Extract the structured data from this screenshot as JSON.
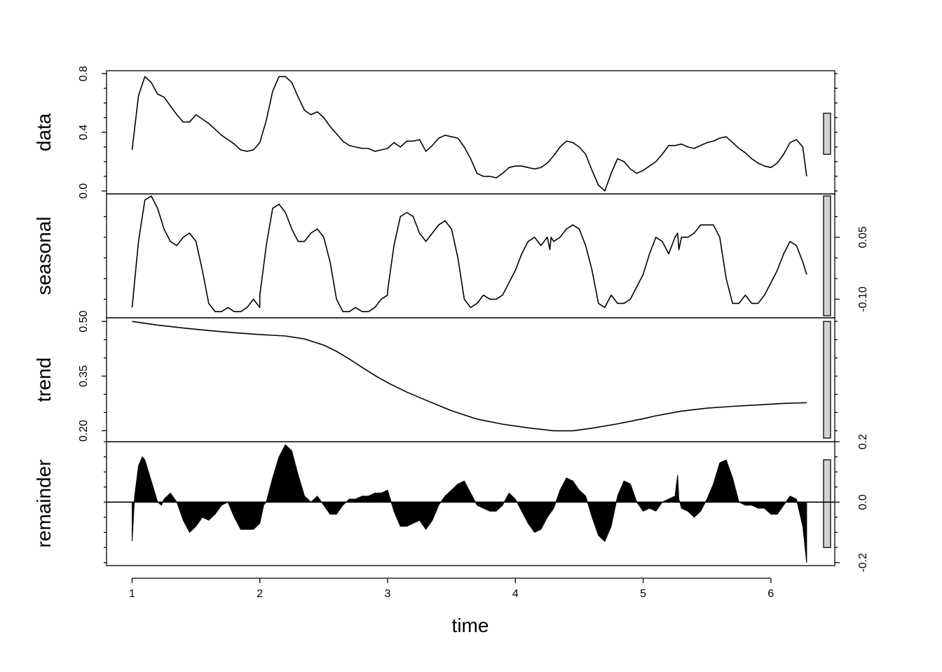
{
  "chart_data": {
    "type": "line",
    "xlabel": "time",
    "xlim": [
      0.8,
      6.5
    ],
    "x_ticks": [
      1,
      2,
      3,
      4,
      5,
      6
    ],
    "x_tick_labels": [
      "1",
      "2",
      "3",
      "4",
      "5",
      "6"
    ],
    "panels": [
      {
        "name": "data",
        "ylabel": "data",
        "style": "line",
        "ylim": [
          -0.02,
          0.82
        ],
        "ticks": [
          0.0,
          0.4,
          0.8
        ],
        "tick_labels": [
          "0.0",
          "0.4",
          "0.8"
        ],
        "tick_side": "left",
        "minor_ticks": [
          0.1,
          0.2,
          0.3,
          0.5,
          0.6,
          0.7
        ],
        "scale_bar": [
          0.25,
          0.53
        ],
        "x": [
          1.0,
          1.05,
          1.1,
          1.15,
          1.2,
          1.25,
          1.3,
          1.35,
          1.4,
          1.45,
          1.5,
          1.6,
          1.7,
          1.75,
          1.8,
          1.85,
          1.9,
          1.95,
          2.0,
          2.05,
          2.1,
          2.15,
          2.2,
          2.25,
          2.3,
          2.35,
          2.4,
          2.45,
          2.5,
          2.55,
          2.6,
          2.65,
          2.7,
          2.75,
          2.8,
          2.85,
          2.9,
          2.95,
          3.0,
          3.05,
          3.1,
          3.15,
          3.2,
          3.25,
          3.3,
          3.35,
          3.4,
          3.45,
          3.5,
          3.55,
          3.6,
          3.65,
          3.7,
          3.75,
          3.8,
          3.85,
          3.9,
          3.95,
          4.0,
          4.05,
          4.1,
          4.15,
          4.2,
          4.25,
          4.3,
          4.35,
          4.4,
          4.45,
          4.5,
          4.55,
          4.6,
          4.65,
          4.7,
          4.75,
          4.8,
          4.85,
          4.9,
          4.95,
          5.0,
          5.05,
          5.1,
          5.15,
          5.2,
          5.25,
          5.3,
          5.35,
          5.4,
          5.45,
          5.5,
          5.55,
          5.6,
          5.65,
          5.7,
          5.75,
          5.8,
          5.85,
          5.9,
          5.95,
          6.0,
          6.05,
          6.1,
          6.15,
          6.2,
          6.25,
          6.28
        ],
        "y": [
          0.28,
          0.65,
          0.78,
          0.74,
          0.66,
          0.64,
          0.58,
          0.52,
          0.47,
          0.47,
          0.52,
          0.46,
          0.38,
          0.35,
          0.32,
          0.28,
          0.27,
          0.28,
          0.33,
          0.48,
          0.68,
          0.78,
          0.78,
          0.74,
          0.64,
          0.55,
          0.52,
          0.54,
          0.5,
          0.44,
          0.39,
          0.34,
          0.31,
          0.3,
          0.29,
          0.29,
          0.27,
          0.28,
          0.29,
          0.33,
          0.3,
          0.34,
          0.34,
          0.35,
          0.27,
          0.31,
          0.36,
          0.38,
          0.37,
          0.36,
          0.3,
          0.22,
          0.12,
          0.1,
          0.1,
          0.09,
          0.12,
          0.16,
          0.17,
          0.17,
          0.16,
          0.15,
          0.16,
          0.19,
          0.24,
          0.3,
          0.34,
          0.33,
          0.3,
          0.25,
          0.14,
          0.04,
          0.0,
          0.12,
          0.22,
          0.2,
          0.15,
          0.12,
          0.14,
          0.17,
          0.2,
          0.25,
          0.31,
          0.31,
          0.32,
          0.3,
          0.29,
          0.31,
          0.33,
          0.34,
          0.36,
          0.37,
          0.33,
          0.29,
          0.26,
          0.22,
          0.19,
          0.17,
          0.16,
          0.19,
          0.25,
          0.33,
          0.35,
          0.3,
          0.1
        ]
      },
      {
        "name": "seasonal",
        "ylabel": "seasonal",
        "style": "line",
        "ylim": [
          -0.145,
          0.155
        ],
        "ticks": [
          -0.1,
          0.05
        ],
        "tick_labels": [
          "-0.10",
          "0.05"
        ],
        "tick_side": "right",
        "minor_ticks": [
          -0.05,
          0.0,
          0.1
        ],
        "scale_bar": [
          -0.14,
          0.15
        ],
        "x": [
          1.0,
          1.05,
          1.1,
          1.15,
          1.2,
          1.25,
          1.3,
          1.35,
          1.4,
          1.45,
          1.5,
          1.55,
          1.6,
          1.65,
          1.7,
          1.75,
          1.8,
          1.85,
          1.9,
          1.95,
          2.0,
          2.0,
          2.05,
          2.1,
          2.15,
          2.2,
          2.25,
          2.3,
          2.35,
          2.4,
          2.45,
          2.5,
          2.55,
          2.6,
          2.65,
          2.7,
          2.75,
          2.8,
          2.85,
          2.9,
          2.95,
          3.0,
          3.0,
          3.05,
          3.1,
          3.15,
          3.2,
          3.25,
          3.3,
          3.35,
          3.4,
          3.45,
          3.5,
          3.55,
          3.6,
          3.65,
          3.7,
          3.75,
          3.8,
          3.85,
          3.9,
          3.95,
          4.0,
          4.05,
          4.1,
          4.15,
          4.2,
          4.25,
          4.27,
          4.28,
          4.3,
          4.35,
          4.4,
          4.45,
          4.5,
          4.55,
          4.6,
          4.65,
          4.7,
          4.75,
          4.8,
          4.85,
          4.9,
          4.95,
          5.0,
          5.05,
          5.1,
          5.15,
          5.2,
          5.25,
          5.27,
          5.28,
          5.3,
          5.35,
          5.4,
          5.45,
          5.5,
          5.55,
          5.6,
          5.65,
          5.7,
          5.75,
          5.8,
          5.85,
          5.9,
          5.95,
          6.0,
          6.05,
          6.1,
          6.15,
          6.2,
          6.25,
          6.28
        ],
        "y": [
          -0.12,
          0.04,
          0.14,
          0.15,
          0.12,
          0.07,
          0.04,
          0.03,
          0.05,
          0.06,
          0.04,
          -0.03,
          -0.11,
          -0.13,
          -0.13,
          -0.12,
          -0.13,
          -0.13,
          -0.12,
          -0.1,
          -0.12,
          -0.09,
          0.03,
          0.12,
          0.13,
          0.11,
          0.07,
          0.04,
          0.04,
          0.06,
          0.07,
          0.05,
          -0.01,
          -0.1,
          -0.13,
          -0.13,
          -0.12,
          -0.13,
          -0.13,
          -0.12,
          -0.1,
          -0.09,
          -0.08,
          0.03,
          0.1,
          0.11,
          0.1,
          0.06,
          0.04,
          0.06,
          0.08,
          0.09,
          0.07,
          0.0,
          -0.1,
          -0.12,
          -0.11,
          -0.09,
          -0.1,
          -0.1,
          -0.09,
          -0.06,
          -0.03,
          0.01,
          0.04,
          0.05,
          0.03,
          0.05,
          0.02,
          0.05,
          0.04,
          0.05,
          0.07,
          0.08,
          0.07,
          0.03,
          -0.03,
          -0.11,
          -0.12,
          -0.09,
          -0.11,
          -0.11,
          -0.1,
          -0.07,
          -0.04,
          0.01,
          0.05,
          0.04,
          0.01,
          0.05,
          0.06,
          0.02,
          0.05,
          0.05,
          0.06,
          0.08,
          0.08,
          0.08,
          0.05,
          -0.05,
          -0.11,
          -0.11,
          -0.09,
          -0.11,
          -0.11,
          -0.09,
          -0.06,
          -0.03,
          0.01,
          0.04,
          0.03,
          -0.01,
          -0.04
        ]
      },
      {
        "name": "trend",
        "ylabel": "trend",
        "style": "line",
        "ylim": [
          0.17,
          0.51
        ],
        "ticks": [
          0.2,
          0.35,
          0.5
        ],
        "tick_labels": [
          "0.20",
          "0.35",
          "0.50"
        ],
        "tick_side": "left",
        "minor_ticks": [
          0.25,
          0.3,
          0.4,
          0.45
        ],
        "scale_bar": [
          0.18,
          0.5
        ],
        "x": [
          1.0,
          1.2,
          1.4,
          1.6,
          1.8,
          2.0,
          2.2,
          2.35,
          2.5,
          2.6,
          2.7,
          2.8,
          2.9,
          3.0,
          3.15,
          3.3,
          3.5,
          3.7,
          3.9,
          4.1,
          4.3,
          4.45,
          4.6,
          4.8,
          5.0,
          5.1,
          5.3,
          5.5,
          5.7,
          5.9,
          6.1,
          6.28
        ],
        "y": [
          0.5,
          0.49,
          0.482,
          0.475,
          0.469,
          0.464,
          0.46,
          0.452,
          0.435,
          0.418,
          0.397,
          0.374,
          0.352,
          0.332,
          0.306,
          0.284,
          0.255,
          0.232,
          0.218,
          0.208,
          0.2,
          0.2,
          0.207,
          0.219,
          0.233,
          0.241,
          0.254,
          0.262,
          0.267,
          0.271,
          0.275,
          0.277
        ]
      },
      {
        "name": "remainder",
        "ylabel": "remainder",
        "style": "area",
        "baseline": 0,
        "ylim": [
          -0.21,
          0.2
        ],
        "ticks": [
          -0.2,
          0.0,
          0.2
        ],
        "tick_labels": [
          "-0.2",
          "0.0",
          "0.2"
        ],
        "tick_side": "right",
        "minor_ticks": [
          -0.15,
          -0.1,
          -0.05,
          0.05,
          0.1,
          0.15
        ],
        "scale_bar": [
          -0.15,
          0.14
        ],
        "x": [
          1.0,
          1.02,
          1.05,
          1.08,
          1.1,
          1.15,
          1.2,
          1.23,
          1.25,
          1.3,
          1.35,
          1.4,
          1.45,
          1.5,
          1.55,
          1.6,
          1.65,
          1.7,
          1.75,
          1.8,
          1.85,
          1.9,
          1.95,
          2.0,
          2.03,
          2.05,
          2.1,
          2.15,
          2.2,
          2.25,
          2.3,
          2.35,
          2.4,
          2.45,
          2.5,
          2.55,
          2.6,
          2.65,
          2.7,
          2.75,
          2.8,
          2.85,
          2.9,
          2.95,
          3.0,
          3.05,
          3.1,
          3.15,
          3.2,
          3.25,
          3.3,
          3.35,
          3.4,
          3.45,
          3.5,
          3.55,
          3.6,
          3.65,
          3.7,
          3.75,
          3.8,
          3.85,
          3.9,
          3.95,
          4.0,
          4.05,
          4.1,
          4.15,
          4.2,
          4.25,
          4.3,
          4.35,
          4.4,
          4.45,
          4.5,
          4.55,
          4.6,
          4.65,
          4.7,
          4.75,
          4.8,
          4.85,
          4.9,
          4.95,
          5.0,
          5.05,
          5.1,
          5.15,
          5.2,
          5.25,
          5.27,
          5.28,
          5.3,
          5.35,
          5.4,
          5.45,
          5.5,
          5.55,
          5.6,
          5.65,
          5.7,
          5.75,
          5.8,
          5.85,
          5.9,
          5.95,
          6.0,
          6.05,
          6.1,
          6.15,
          6.2,
          6.25,
          6.28
        ],
        "y": [
          -0.13,
          0.02,
          0.12,
          0.15,
          0.14,
          0.07,
          0.0,
          -0.01,
          0.01,
          0.03,
          0.0,
          -0.06,
          -0.1,
          -0.08,
          -0.05,
          -0.06,
          -0.04,
          -0.01,
          0.0,
          -0.05,
          -0.09,
          -0.09,
          -0.09,
          -0.07,
          -0.01,
          0.0,
          0.08,
          0.15,
          0.19,
          0.17,
          0.09,
          0.02,
          0.0,
          0.02,
          -0.01,
          -0.04,
          -0.04,
          -0.01,
          0.01,
          0.01,
          0.02,
          0.02,
          0.03,
          0.03,
          0.04,
          -0.03,
          -0.08,
          -0.08,
          -0.07,
          -0.06,
          -0.09,
          -0.06,
          -0.01,
          0.02,
          0.04,
          0.06,
          0.07,
          0.03,
          -0.01,
          -0.02,
          -0.03,
          -0.03,
          -0.01,
          0.03,
          0.01,
          -0.03,
          -0.07,
          -0.1,
          -0.09,
          -0.05,
          -0.02,
          0.04,
          0.08,
          0.07,
          0.04,
          0.02,
          -0.05,
          -0.11,
          -0.13,
          -0.08,
          0.02,
          0.07,
          0.06,
          0.0,
          -0.03,
          -0.02,
          -0.03,
          0.0,
          0.01,
          0.02,
          0.09,
          0.01,
          -0.02,
          -0.03,
          -0.05,
          -0.03,
          0.01,
          0.06,
          0.13,
          0.14,
          0.08,
          0.0,
          -0.01,
          -0.01,
          -0.02,
          -0.02,
          -0.04,
          -0.04,
          -0.01,
          0.02,
          0.01,
          -0.08,
          -0.2
        ]
      }
    ]
  }
}
